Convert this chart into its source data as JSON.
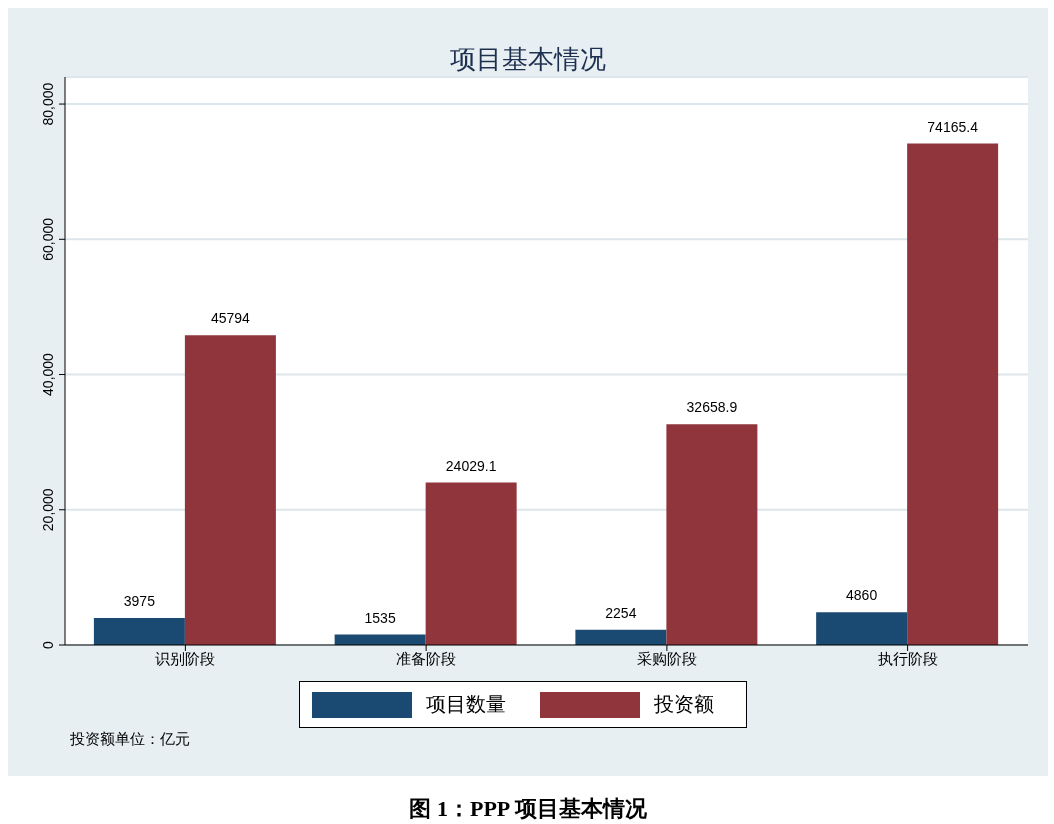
{
  "chart_data": {
    "type": "bar",
    "title": "项目基本情况",
    "categories": [
      "识别阶段",
      "准备阶段",
      "采购阶段",
      "执行阶段"
    ],
    "series": [
      {
        "name": "项目数量",
        "color": "#1a4a72",
        "values": [
          3975,
          1535,
          2254,
          4860
        ]
      },
      {
        "name": "投资额",
        "color": "#90353b",
        "values": [
          45794,
          24029.1,
          32658.9,
          74165.4
        ]
      }
    ],
    "ylim": [
      0,
      84000
    ],
    "yticks": [
      0,
      {
        "value": 20000,
        "label": "20,000"
      },
      {
        "value": 40000,
        "label": "40,000"
      },
      {
        "value": 60000,
        "label": "60,000"
      },
      {
        "value": 80000,
        "label": "80,000"
      }
    ],
    "grid": "y",
    "legend": "bottom",
    "data_labels": true,
    "annotations": [
      "投资额单位：亿元",
      "图 1：PPP 项目基本情况"
    ]
  }
}
